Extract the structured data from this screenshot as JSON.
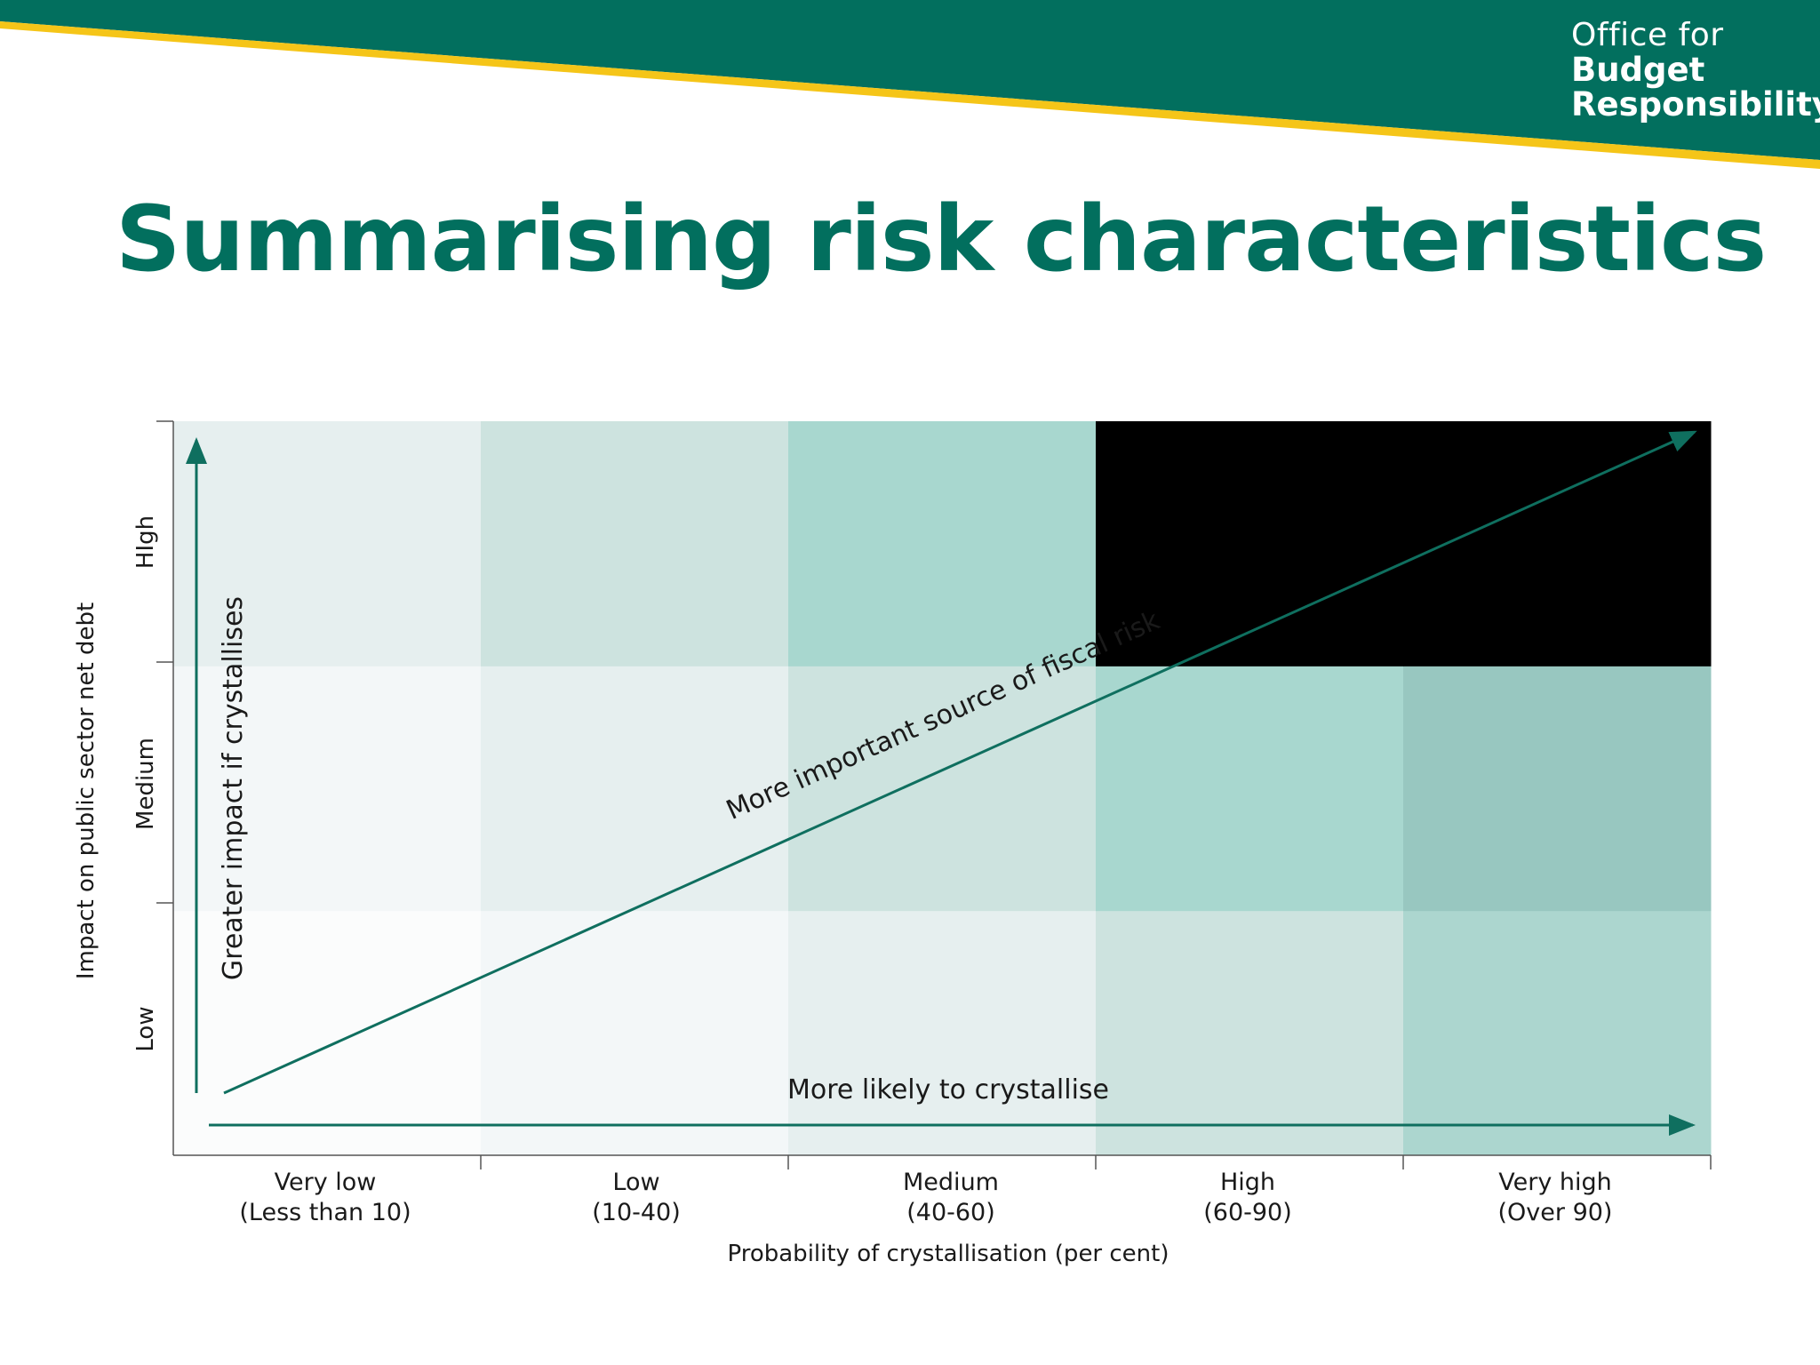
{
  "colors": {
    "brand": "#026f5e",
    "accent": "#f5c518"
  },
  "logo": {
    "line1": "Office for",
    "line2": "Budget",
    "line3": "Responsibility"
  },
  "title": "Summarising risk characteristics",
  "diagram": {
    "y_axis_label": "Impact on public sector net debt",
    "y_levels": [
      "Low",
      "Medium",
      "HIgh"
    ],
    "x_axis_label": "Probability of crystallisation (per cent)",
    "x_levels": [
      {
        "name": "Very low",
        "range": "(Less than 10)"
      },
      {
        "name": "Low",
        "range": "(10-40)"
      },
      {
        "name": "Medium",
        "range": "(40-60)"
      },
      {
        "name": "High",
        "range": "(60-90)"
      },
      {
        "name": "Very high",
        "range": "(Over 90)"
      }
    ],
    "vertical_arrow_label": "Greater impact if crystallises",
    "horizontal_arrow_label": "More likely to crystallise",
    "diagonal_arrow_label": "More important source of fiscal risk",
    "shading_levels": [
      [
        0,
        1,
        2,
        3,
        4
      ],
      [
        1,
        2,
        3,
        5,
        6
      ],
      [
        2,
        3,
        5,
        7,
        8
      ]
    ],
    "shading_palette": [
      "#fbfcfc",
      "#f3f7f8",
      "#e6efef",
      "#cde3df",
      "#acd6cf",
      "#a8d7cf",
      "#98c7c0"
    ]
  }
}
